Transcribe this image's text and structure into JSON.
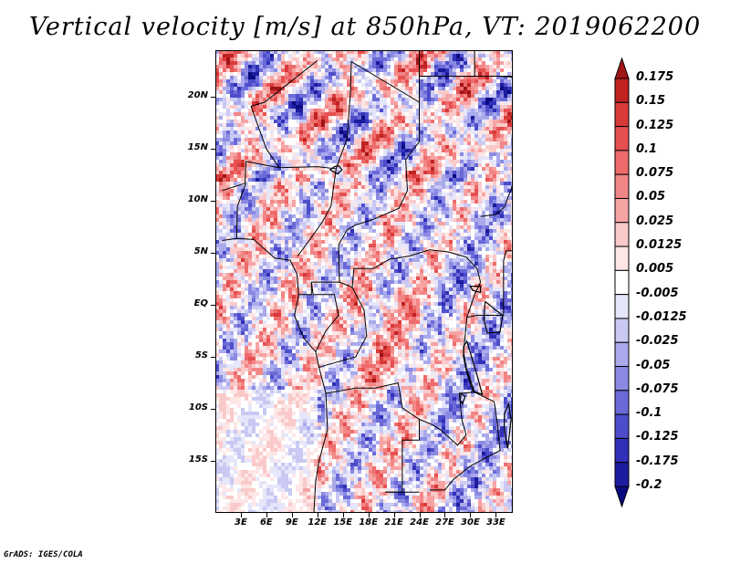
{
  "title": "Vertical velocity [m/s] at 850hPa, VT: 2019062200",
  "footer": "GrADS: IGES/COLA",
  "map": {
    "lon_range": [
      0,
      35
    ],
    "lat_range": [
      -20,
      24.5
    ],
    "lat_ticks": [
      {
        "value": 20,
        "label": "20N"
      },
      {
        "value": 15,
        "label": "15N"
      },
      {
        "value": 10,
        "label": "10N"
      },
      {
        "value": 5,
        "label": "5N"
      },
      {
        "value": 0,
        "label": "EQ"
      },
      {
        "value": -5,
        "label": "5S"
      },
      {
        "value": -10,
        "label": "10S"
      },
      {
        "value": -15,
        "label": "15S"
      }
    ],
    "lon_ticks": [
      {
        "value": 3,
        "label": "3E"
      },
      {
        "value": 6,
        "label": "6E"
      },
      {
        "value": 9,
        "label": "9E"
      },
      {
        "value": 12,
        "label": "12E"
      },
      {
        "value": 15,
        "label": "15E"
      },
      {
        "value": 18,
        "label": "18E"
      },
      {
        "value": 21,
        "label": "21E"
      },
      {
        "value": 24,
        "label": "24E"
      },
      {
        "value": 27,
        "label": "27E"
      },
      {
        "value": 30,
        "label": "30E"
      },
      {
        "value": 33,
        "label": "33E"
      }
    ]
  },
  "colorbar": {
    "levels": [
      "0.175",
      "0.15",
      "0.125",
      "0.1",
      "0.075",
      "0.05",
      "0.025",
      "0.0125",
      "0.005",
      "-0.005",
      "-0.0125",
      "-0.025",
      "-0.05",
      "-0.075",
      "-0.1",
      "-0.125",
      "-0.175",
      "-0.2"
    ],
    "colors": [
      "#a01515",
      "#c02222",
      "#d83a3a",
      "#e65050",
      "#ee6b6b",
      "#f28686",
      "#f6a3a3",
      "#facaca",
      "#fde6e6",
      "#ffffff",
      "#e6e6fa",
      "#c9c9f3",
      "#a9a9ec",
      "#8a8ae3",
      "#6a6ad8",
      "#4d4dcb",
      "#3030b8",
      "#1c1c9e",
      "#0a0a80"
    ]
  }
}
